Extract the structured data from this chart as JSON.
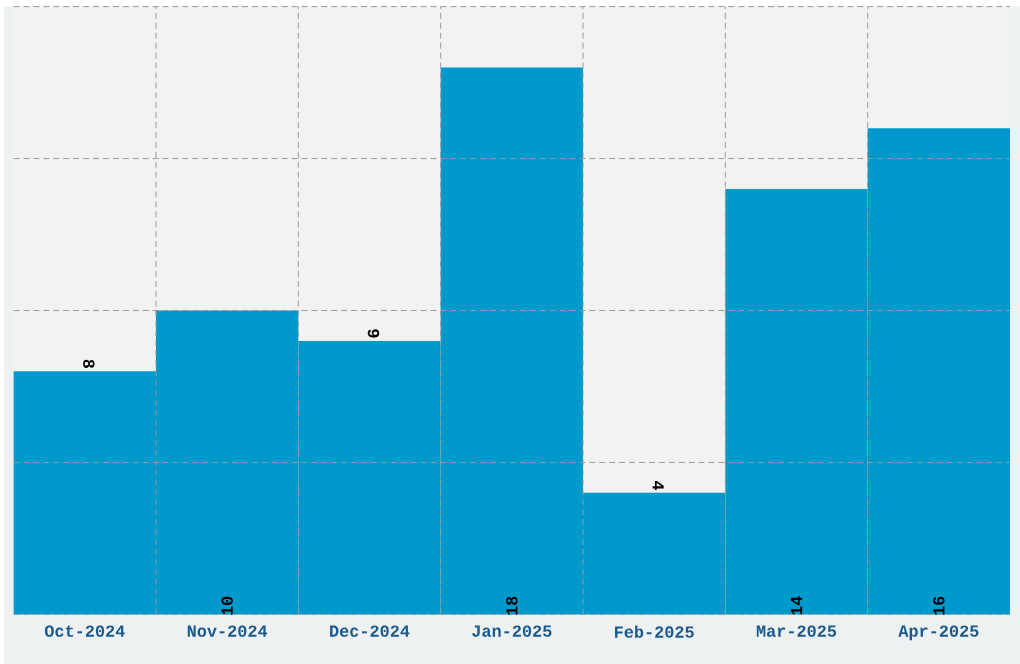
{
  "chart_data": {
    "type": "bar",
    "categories": [
      "Oct-2024",
      "Nov-2024",
      "Dec-2024",
      "Jan-2025",
      "Feb-2025",
      "Mar-2025",
      "Apr-2025"
    ],
    "values": [
      8,
      10,
      9,
      18,
      4,
      14,
      16
    ],
    "color": "#0099cc",
    "ylim": [
      0,
      20
    ],
    "yticks": [
      {
        "value": 0,
        "label": null
      },
      {
        "value": 5,
        "label": null
      },
      {
        "value": 10,
        "label": null
      },
      {
        "value": 15,
        "label": null
      },
      {
        "value": 20,
        "label": null
      }
    ],
    "tick_labels": "x",
    "grid": true,
    "data_labels": true
  }
}
